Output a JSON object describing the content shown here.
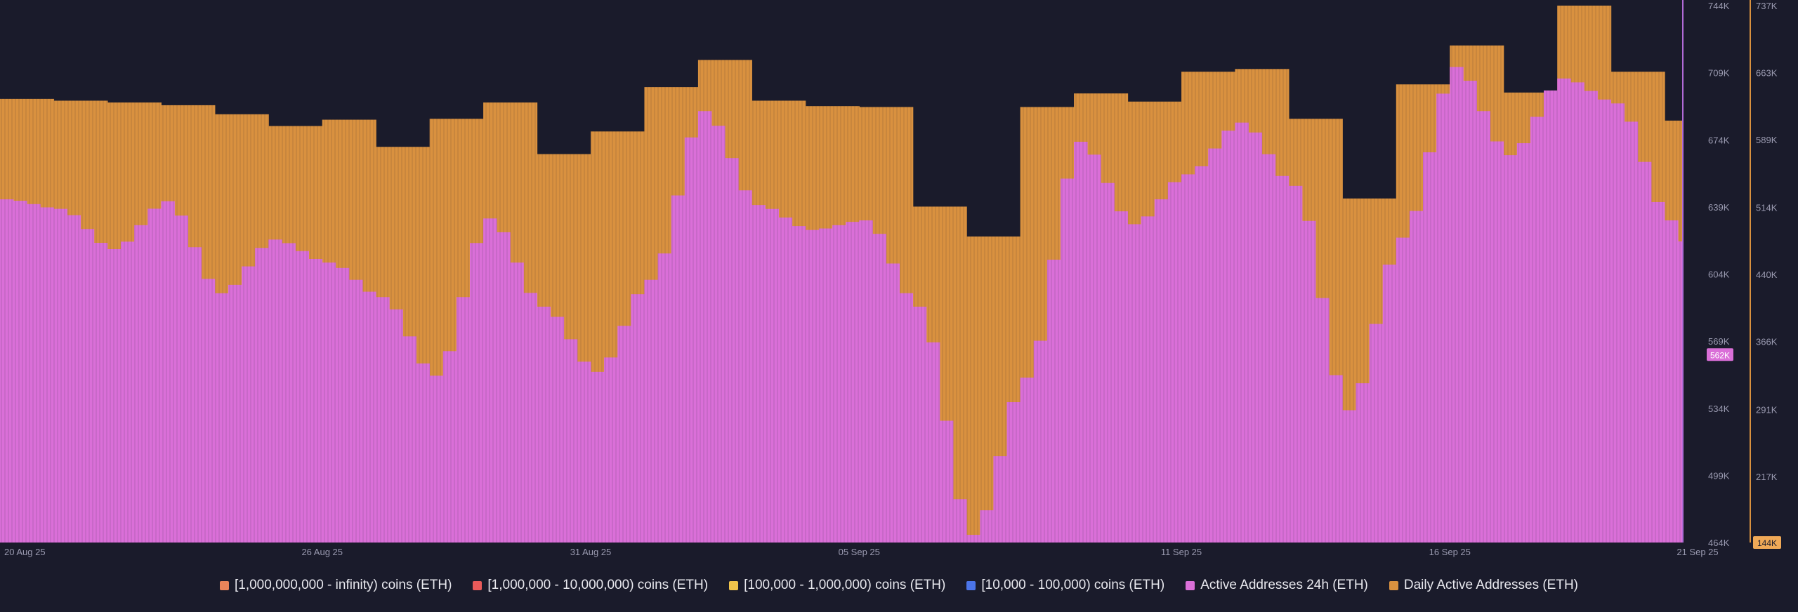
{
  "chart_data": {
    "type": "bar",
    "x_ticks": [
      "20 Aug 25",
      "26 Aug 25",
      "31 Aug 25",
      "05 Sep 25",
      "11 Sep 25",
      "16 Sep 25",
      "21 Sep 25"
    ],
    "left_axis": {
      "ticks": [
        "744K",
        "709K",
        "674K",
        "639K",
        "604K",
        "569K",
        "534K",
        "499K",
        "464K"
      ],
      "range": [
        464000,
        744000
      ],
      "current_label": "562K"
    },
    "right_axis": {
      "ticks": [
        "737K",
        "663K",
        "589K",
        "514K",
        "440K",
        "366K",
        "291K",
        "217K"
      ],
      "range": [
        144000,
        737000
      ],
      "current_label": "144K"
    },
    "series": [
      {
        "name": "Daily Active Addresses (ETH)",
        "axis": "right",
        "color": "#d9913f",
        "days": [
          "20 Aug 25",
          "21 Aug 25",
          "22 Aug 25",
          "23 Aug 25",
          "24 Aug 25",
          "25 Aug 25",
          "26 Aug 25",
          "27 Aug 25",
          "28 Aug 25",
          "29 Aug 25",
          "30 Aug 25",
          "31 Aug 25",
          "01 Sep 25",
          "02 Sep 25",
          "03 Sep 25",
          "04 Sep 25",
          "05 Sep 25",
          "06 Sep 25",
          "07 Sep 25",
          "08 Sep 25",
          "09 Sep 25",
          "10 Sep 25",
          "11 Sep 25",
          "12 Sep 25",
          "13 Sep 25",
          "14 Sep 25",
          "15 Sep 25",
          "16 Sep 25",
          "17 Sep 25",
          "18 Sep 25",
          "19 Sep 25",
          "20 Sep 25"
        ],
        "values": [
          634000,
          632000,
          630000,
          627000,
          617000,
          604000,
          611000,
          581000,
          612000,
          630000,
          573000,
          598000,
          647000,
          677000,
          632000,
          626000,
          625000,
          515000,
          482000,
          625000,
          640000,
          631000,
          664000,
          667000,
          612000,
          524000,
          650000,
          693000,
          641000,
          737000,
          664000,
          610000
        ]
      },
      {
        "name": "Active Addresses 24h (ETH)",
        "axis": "left",
        "color": "#da6fd8",
        "samples": [
          [
            "20 Aug 25",
            643000
          ],
          [
            "21 Aug 25",
            638000
          ],
          [
            "22 Aug 25",
            617000
          ],
          [
            "23 Aug 25",
            642000
          ],
          [
            "24 Aug 25",
            594000
          ],
          [
            "25 Aug 25",
            622000
          ],
          [
            "26 Aug 25",
            610000
          ],
          [
            "27 Aug 25",
            592000
          ],
          [
            "28 Aug 25",
            551000
          ],
          [
            "29 Aug 25",
            633000
          ],
          [
            "30 Aug 25",
            587000
          ],
          [
            "31 Aug 25",
            553000
          ],
          [
            "01 Sep 25",
            601000
          ],
          [
            "02 Sep 25",
            689000
          ],
          [
            "03 Sep 25",
            640000
          ],
          [
            "04 Sep 25",
            627000
          ],
          [
            "05 Sep 25",
            632000
          ],
          [
            "06 Sep 25",
            587000
          ],
          [
            "07 Sep 25",
            468000
          ],
          [
            "08 Sep 25",
            550000
          ],
          [
            "09 Sep 25",
            673000
          ],
          [
            "10 Sep 25",
            630000
          ],
          [
            "11 Sep 25",
            656000
          ],
          [
            "12 Sep 25",
            683000
          ],
          [
            "13 Sep 25",
            650000
          ],
          [
            "14 Sep 25",
            533000
          ],
          [
            "15 Sep 25",
            623000
          ],
          [
            "16 Sep 25",
            712000
          ],
          [
            "17 Sep 25",
            666000
          ],
          [
            "18 Sep 25",
            706000
          ],
          [
            "19 Sep 25",
            693000
          ],
          [
            "20 Sep 25",
            632000
          ],
          [
            "21 Sep 25",
            562000
          ]
        ]
      },
      {
        "name": "[1,000,000,000 - infinity) coins (ETH)",
        "color": "#e8845a"
      },
      {
        "name": "[1,000,000 - 10,000,000) coins (ETH)",
        "color": "#e85a5a"
      },
      {
        "name": "[100,000  - 1,000,000) coins (ETH)",
        "color": "#f1c44b"
      },
      {
        "name": "[10,000 - 100,000) coins (ETH)",
        "color": "#4b74e8"
      }
    ],
    "legend_order": [
      "[1,000,000,000 - infinity) coins (ETH)",
      "[1,000,000 - 10,000,000) coins (ETH)",
      "[100,000  - 1,000,000) coins (ETH)",
      "[10,000 - 100,000) coins (ETH)",
      "Active Addresses 24h (ETH)",
      "Daily Active Addresses (ETH)"
    ],
    "legend_placement": "bottom",
    "grid": false
  }
}
